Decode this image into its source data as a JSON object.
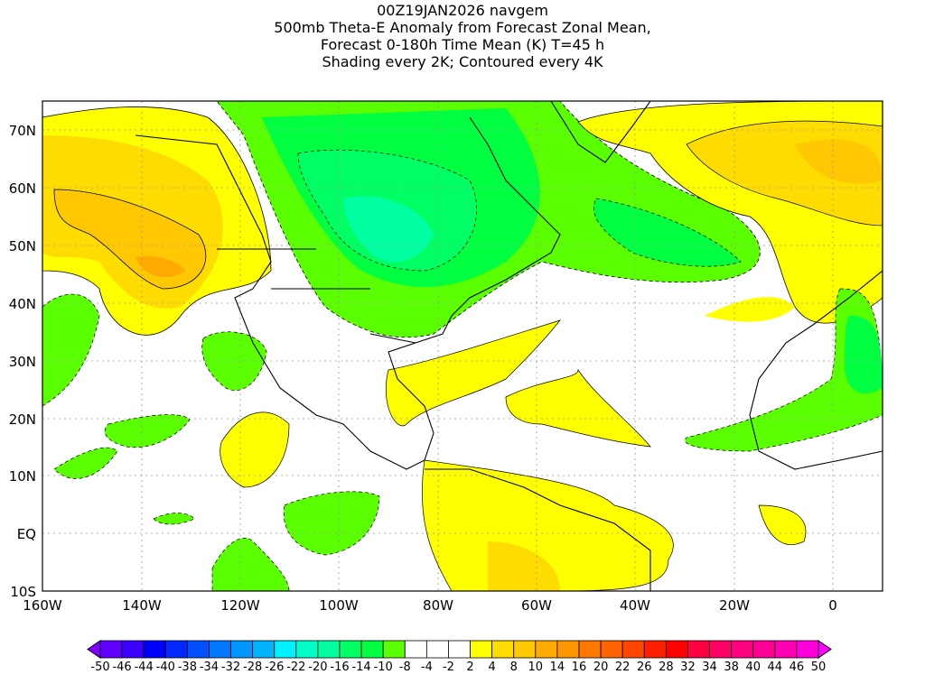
{
  "title": {
    "line1": "00Z19JAN2026 navgem",
    "line2": "500mb Theta-E Anomaly from Forecast Zonal Mean,",
    "line3": "Forecast 0-180h Time Mean (K) T=45 h",
    "line4": "Shading every 2K; Contoured every 4K"
  },
  "map": {
    "lat_labels": [
      "70N",
      "60N",
      "50N",
      "40N",
      "30N",
      "20N",
      "10N",
      "EQ",
      "10S"
    ],
    "lon_labels": [
      "160W",
      "140W",
      "120W",
      "100W",
      "80W",
      "60W",
      "40W",
      "20W",
      "0"
    ]
  },
  "colorbar": {
    "labels": [
      "-50",
      "-46",
      "-44",
      "-40",
      "-38",
      "-34",
      "-32",
      "-28",
      "-26",
      "-22",
      "-20",
      "-16",
      "-14",
      "-10",
      "-8",
      "-4",
      "-2",
      "2",
      "4",
      "8",
      "10",
      "14",
      "16",
      "20",
      "22",
      "26",
      "28",
      "32",
      "34",
      "38",
      "40",
      "44",
      "46",
      "50"
    ],
    "colors": [
      "#7f00ff",
      "#6000ff",
      "#3c00ff",
      "#0000ff",
      "#0028ff",
      "#0050ff",
      "#0078ff",
      "#0096ff",
      "#00b4ff",
      "#00f0ff",
      "#00ffc8",
      "#00ffa0",
      "#00ff64",
      "#00ff40",
      "#5aff00",
      "#ffffff",
      "#ffffff",
      "#ffffff",
      "#ffff00",
      "#ffdc00",
      "#ffc800",
      "#ffaa00",
      "#ff9600",
      "#ff7800",
      "#ff6400",
      "#ff4600",
      "#ff1e00",
      "#ff0000",
      "#ff0040",
      "#ff0064",
      "#ff0080",
      "#ff0096",
      "#ff00b4",
      "#ff00dc",
      "#ff00ff"
    ]
  }
}
